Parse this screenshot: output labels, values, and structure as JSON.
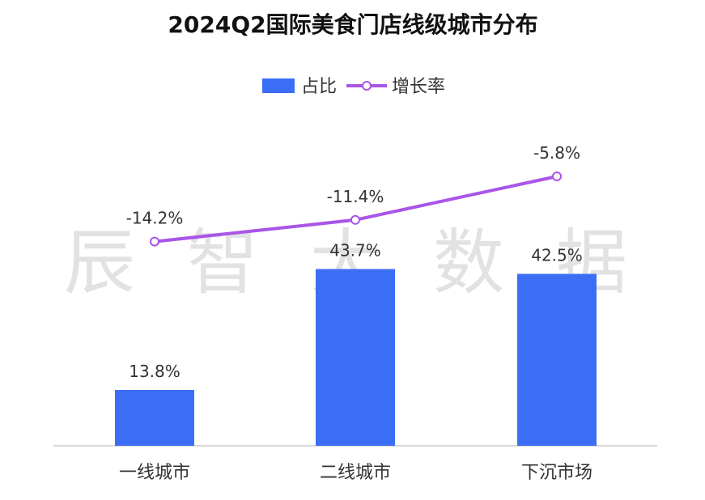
{
  "watermark": "辰 智 大 数 据",
  "chart_data": {
    "type": "bar",
    "title": "2024Q2国际美食门店线级城市分布",
    "categories": [
      "一线城市",
      "二线城市",
      "下沉市场"
    ],
    "series": [
      {
        "name": "占比",
        "type": "bar",
        "values": [
          13.8,
          43.7,
          42.5
        ],
        "labels": [
          "13.8%",
          "43.7%",
          "42.5%"
        ],
        "color": "#3c6ef5"
      },
      {
        "name": "增长率",
        "type": "line",
        "values": [
          -14.2,
          -11.4,
          -5.8
        ],
        "labels": [
          "-14.2%",
          "-11.4%",
          "-5.8%"
        ],
        "color": "#a855e8"
      }
    ],
    "legend_position": "top-center",
    "grid": false
  }
}
